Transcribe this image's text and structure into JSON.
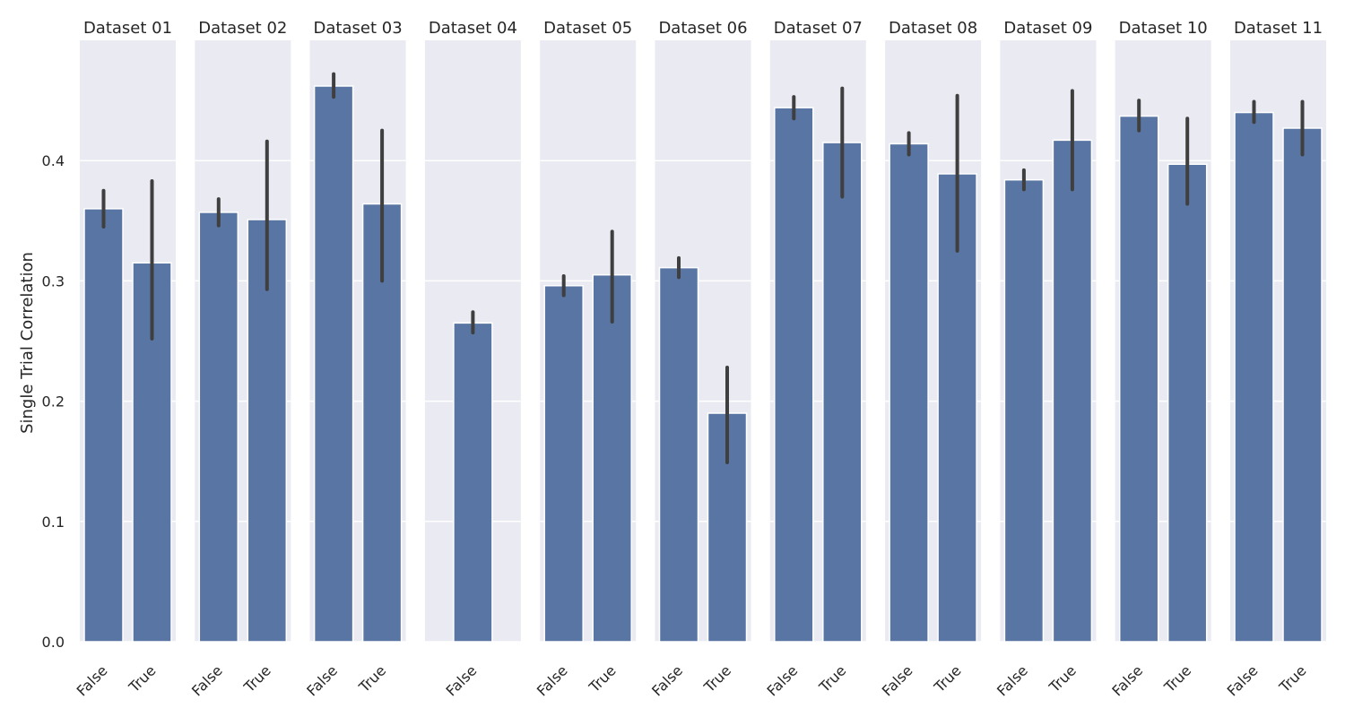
{
  "chart_data": {
    "type": "bar",
    "ylabel": "Single Trial Correlation",
    "xlabel": "",
    "ylim": [
      0,
      0.5
    ],
    "yticks": [
      "0.0",
      "0.1",
      "0.2",
      "0.3",
      "0.4"
    ],
    "grid": true,
    "panels": [
      {
        "title": "Dataset 01",
        "bars": [
          {
            "category": "False",
            "value": 0.36,
            "err_low": 0.345,
            "err_high": 0.375
          },
          {
            "category": "True",
            "value": 0.315,
            "err_low": 0.252,
            "err_high": 0.383
          }
        ]
      },
      {
        "title": "Dataset 02",
        "bars": [
          {
            "category": "False",
            "value": 0.357,
            "err_low": 0.346,
            "err_high": 0.368
          },
          {
            "category": "True",
            "value": 0.351,
            "err_low": 0.293,
            "err_high": 0.416
          }
        ]
      },
      {
        "title": "Dataset 03",
        "bars": [
          {
            "category": "False",
            "value": 0.462,
            "err_low": 0.453,
            "err_high": 0.472
          },
          {
            "category": "True",
            "value": 0.364,
            "err_low": 0.3,
            "err_high": 0.425
          }
        ]
      },
      {
        "title": "Dataset 04",
        "bars": [
          {
            "category": "False",
            "value": 0.265,
            "err_low": 0.257,
            "err_high": 0.274
          }
        ]
      },
      {
        "title": "Dataset 05",
        "bars": [
          {
            "category": "False",
            "value": 0.296,
            "err_low": 0.288,
            "err_high": 0.304
          },
          {
            "category": "True",
            "value": 0.305,
            "err_low": 0.266,
            "err_high": 0.341
          }
        ]
      },
      {
        "title": "Dataset 06",
        "bars": [
          {
            "category": "False",
            "value": 0.311,
            "err_low": 0.303,
            "err_high": 0.319
          },
          {
            "category": "True",
            "value": 0.19,
            "err_low": 0.149,
            "err_high": 0.228
          }
        ]
      },
      {
        "title": "Dataset 07",
        "bars": [
          {
            "category": "False",
            "value": 0.444,
            "err_low": 0.435,
            "err_high": 0.453
          },
          {
            "category": "True",
            "value": 0.415,
            "err_low": 0.37,
            "err_high": 0.46
          }
        ]
      },
      {
        "title": "Dataset 08",
        "bars": [
          {
            "category": "False",
            "value": 0.414,
            "err_low": 0.405,
            "err_high": 0.423
          },
          {
            "category": "True",
            "value": 0.389,
            "err_low": 0.325,
            "err_high": 0.454
          }
        ]
      },
      {
        "title": "Dataset 09",
        "bars": [
          {
            "category": "False",
            "value": 0.384,
            "err_low": 0.376,
            "err_high": 0.392
          },
          {
            "category": "True",
            "value": 0.417,
            "err_low": 0.376,
            "err_high": 0.458
          }
        ]
      },
      {
        "title": "Dataset 10",
        "bars": [
          {
            "category": "False",
            "value": 0.437,
            "err_low": 0.425,
            "err_high": 0.45
          },
          {
            "category": "True",
            "value": 0.397,
            "err_low": 0.364,
            "err_high": 0.435
          }
        ]
      },
      {
        "title": "Dataset 11",
        "bars": [
          {
            "category": "False",
            "value": 0.44,
            "err_low": 0.432,
            "err_high": 0.449
          },
          {
            "category": "True",
            "value": 0.427,
            "err_low": 0.405,
            "err_high": 0.449
          }
        ]
      }
    ]
  },
  "colors": {
    "bar": "#5975a4",
    "panel_background": "#eaeaf2",
    "error_bar": "#3f3f3f"
  }
}
